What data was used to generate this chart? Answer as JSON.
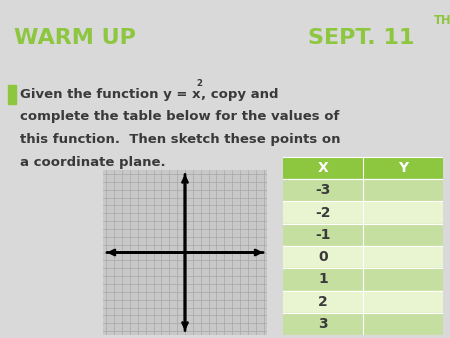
{
  "title_left": "WARM UP",
  "title_right": "SEPT. 11",
  "title_superscript": "TH",
  "header_bg": "#5d6470",
  "header_text_color": "#8dc63f",
  "body_bg": "#d9d9d9",
  "bullet_color": "#8dc63f",
  "body_text_color": "#3a3a3a",
  "table_header_bg": "#8dc63f",
  "table_header_text": "#ffffff",
  "table_row_even_bg": "#c5dfa0",
  "table_row_odd_bg": "#e8f5d0",
  "table_x_values": [
    "-3",
    "-2",
    "-1",
    "0",
    "1",
    "2",
    "3"
  ],
  "grid_bg": "#c8c8c8",
  "grid_line_color": "#a8a8a8",
  "axis_color": "#000000",
  "font_size_title": 16,
  "font_size_body": 9.5,
  "font_size_table": 10
}
